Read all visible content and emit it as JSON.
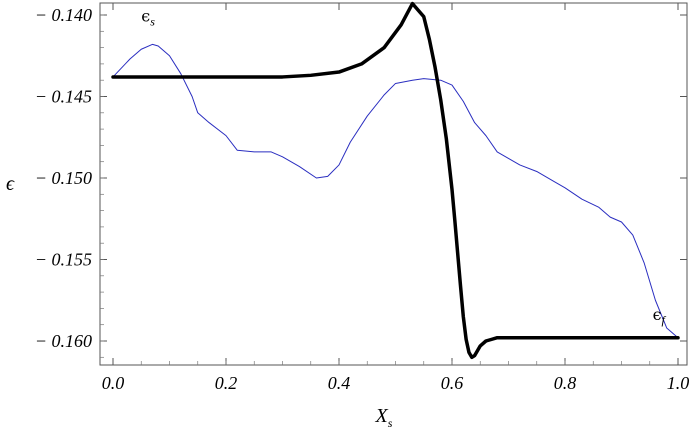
{
  "chart_data": {
    "type": "line",
    "xlabel": "X",
    "xlabel_sub": "s",
    "ylabel": "ϵ",
    "xlim": [
      0.0,
      1.0
    ],
    "ylim": [
      -0.1617,
      -0.1385
    ],
    "x_ticks": [
      0.0,
      0.2,
      0.4,
      0.6,
      0.8,
      1.0
    ],
    "x_tick_labels": [
      "0.0",
      "0.2",
      "0.4",
      "0.6",
      "0.8",
      "1.0"
    ],
    "y_ticks": [
      -0.14,
      -0.145,
      -0.15,
      -0.155,
      -0.16
    ],
    "y_tick_labels": [
      "− 0.140",
      "− 0.145",
      "− 0.150",
      "− 0.155",
      "− 0.160"
    ],
    "grid": false,
    "series": [
      {
        "color": "#2a2ec0",
        "style": "thin",
        "x": [
          0.0,
          0.03,
          0.05,
          0.07,
          0.08,
          0.1,
          0.12,
          0.14,
          0.15,
          0.17,
          0.2,
          0.22,
          0.25,
          0.28,
          0.3,
          0.33,
          0.36,
          0.38,
          0.4,
          0.42,
          0.45,
          0.48,
          0.5,
          0.53,
          0.55,
          0.58,
          0.6,
          0.62,
          0.64,
          0.66,
          0.68,
          0.7,
          0.72,
          0.75,
          0.78,
          0.8,
          0.83,
          0.86,
          0.88,
          0.9,
          0.92,
          0.94,
          0.96,
          0.98,
          1.0
        ],
        "y": [
          -0.1438,
          -0.1427,
          -0.1421,
          -0.1418,
          -0.1419,
          -0.1425,
          -0.1436,
          -0.145,
          -0.146,
          -0.1466,
          -0.1474,
          -0.1483,
          -0.1484,
          -0.1484,
          -0.1487,
          -0.1493,
          -0.15,
          -0.1499,
          -0.1492,
          -0.1478,
          -0.1462,
          -0.1449,
          -0.1442,
          -0.144,
          -0.1439,
          -0.144,
          -0.1443,
          -0.1453,
          -0.1466,
          -0.1474,
          -0.1484,
          -0.1488,
          -0.1492,
          -0.1496,
          -0.1502,
          -0.1506,
          -0.1513,
          -0.1518,
          -0.1524,
          -0.1527,
          -0.1535,
          -0.1552,
          -0.1575,
          -0.1592,
          -0.1598
        ]
      },
      {
        "color": "#000000",
        "style": "thick",
        "x": [
          0.0,
          0.1,
          0.2,
          0.3,
          0.35,
          0.4,
          0.44,
          0.48,
          0.51,
          0.53,
          0.55,
          0.56,
          0.57,
          0.58,
          0.59,
          0.6,
          0.605,
          0.61,
          0.615,
          0.62,
          0.625,
          0.63,
          0.635,
          0.64,
          0.645,
          0.65,
          0.66,
          0.67,
          0.68,
          0.7,
          0.72,
          0.75,
          0.8,
          0.9,
          1.0
        ],
        "y": [
          -0.1438,
          -0.1438,
          -0.1438,
          -0.1438,
          -0.1437,
          -0.1435,
          -0.143,
          -0.142,
          -0.1406,
          -0.1393,
          -0.1401,
          -0.1415,
          -0.1432,
          -0.1452,
          -0.1476,
          -0.1507,
          -0.1526,
          -0.1546,
          -0.1566,
          -0.1585,
          -0.1599,
          -0.1607,
          -0.161,
          -0.1609,
          -0.1606,
          -0.1603,
          -0.16,
          -0.1599,
          -0.1598,
          -0.1598,
          -0.1598,
          -0.1598,
          -0.1598,
          -0.1598,
          -0.1598
        ]
      }
    ],
    "annotations": [
      {
        "base": "ϵ",
        "sub": "s",
        "x": 0.05,
        "y": -0.1404
      },
      {
        "base": "ϵ",
        "sub": "f",
        "x": 0.955,
        "y": -0.1587
      }
    ]
  }
}
